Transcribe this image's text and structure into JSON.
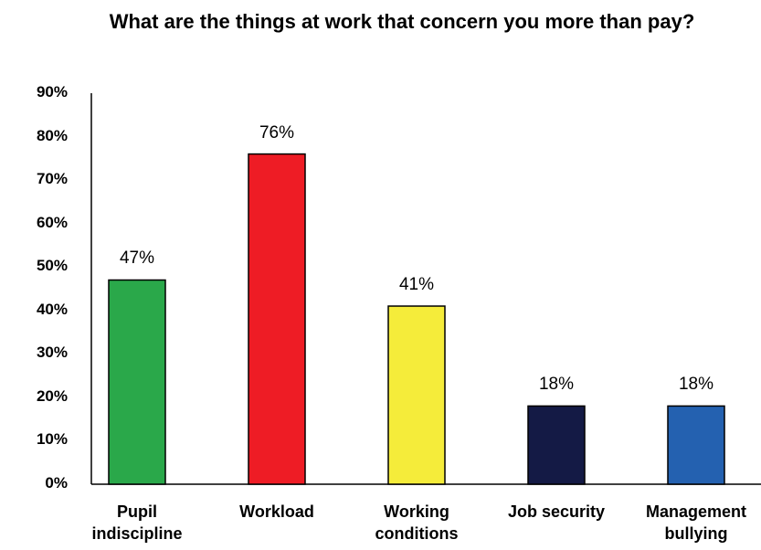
{
  "chart_data": {
    "type": "bar",
    "title": "What are the things at work that concern you more than pay?",
    "categories": [
      "Pupil indiscipline",
      "Workload",
      "Working conditions",
      "Job security",
      "Management bullying"
    ],
    "values": [
      47,
      76,
      41,
      18,
      18
    ],
    "value_labels": [
      "47%",
      "76%",
      "41%",
      "18%",
      "18%"
    ],
    "colors": [
      "#2aa84a",
      "#ee1c25",
      "#f5ec3a",
      "#141a45",
      "#2461b0"
    ],
    "ylim": [
      0,
      90
    ],
    "yticks": [
      {
        "value": 0,
        "label": "0%"
      },
      {
        "value": 10,
        "label": "10%"
      },
      {
        "value": 20,
        "label": "20%"
      },
      {
        "value": 30,
        "label": "30%"
      },
      {
        "value": 40,
        "label": "40%"
      },
      {
        "value": 50,
        "label": "50%"
      },
      {
        "value": 60,
        "label": "60%"
      },
      {
        "value": 70,
        "label": "70%"
      },
      {
        "value": 80,
        "label": "80%"
      },
      {
        "value": 90,
        "label": "90%"
      }
    ],
    "grid": false
  }
}
